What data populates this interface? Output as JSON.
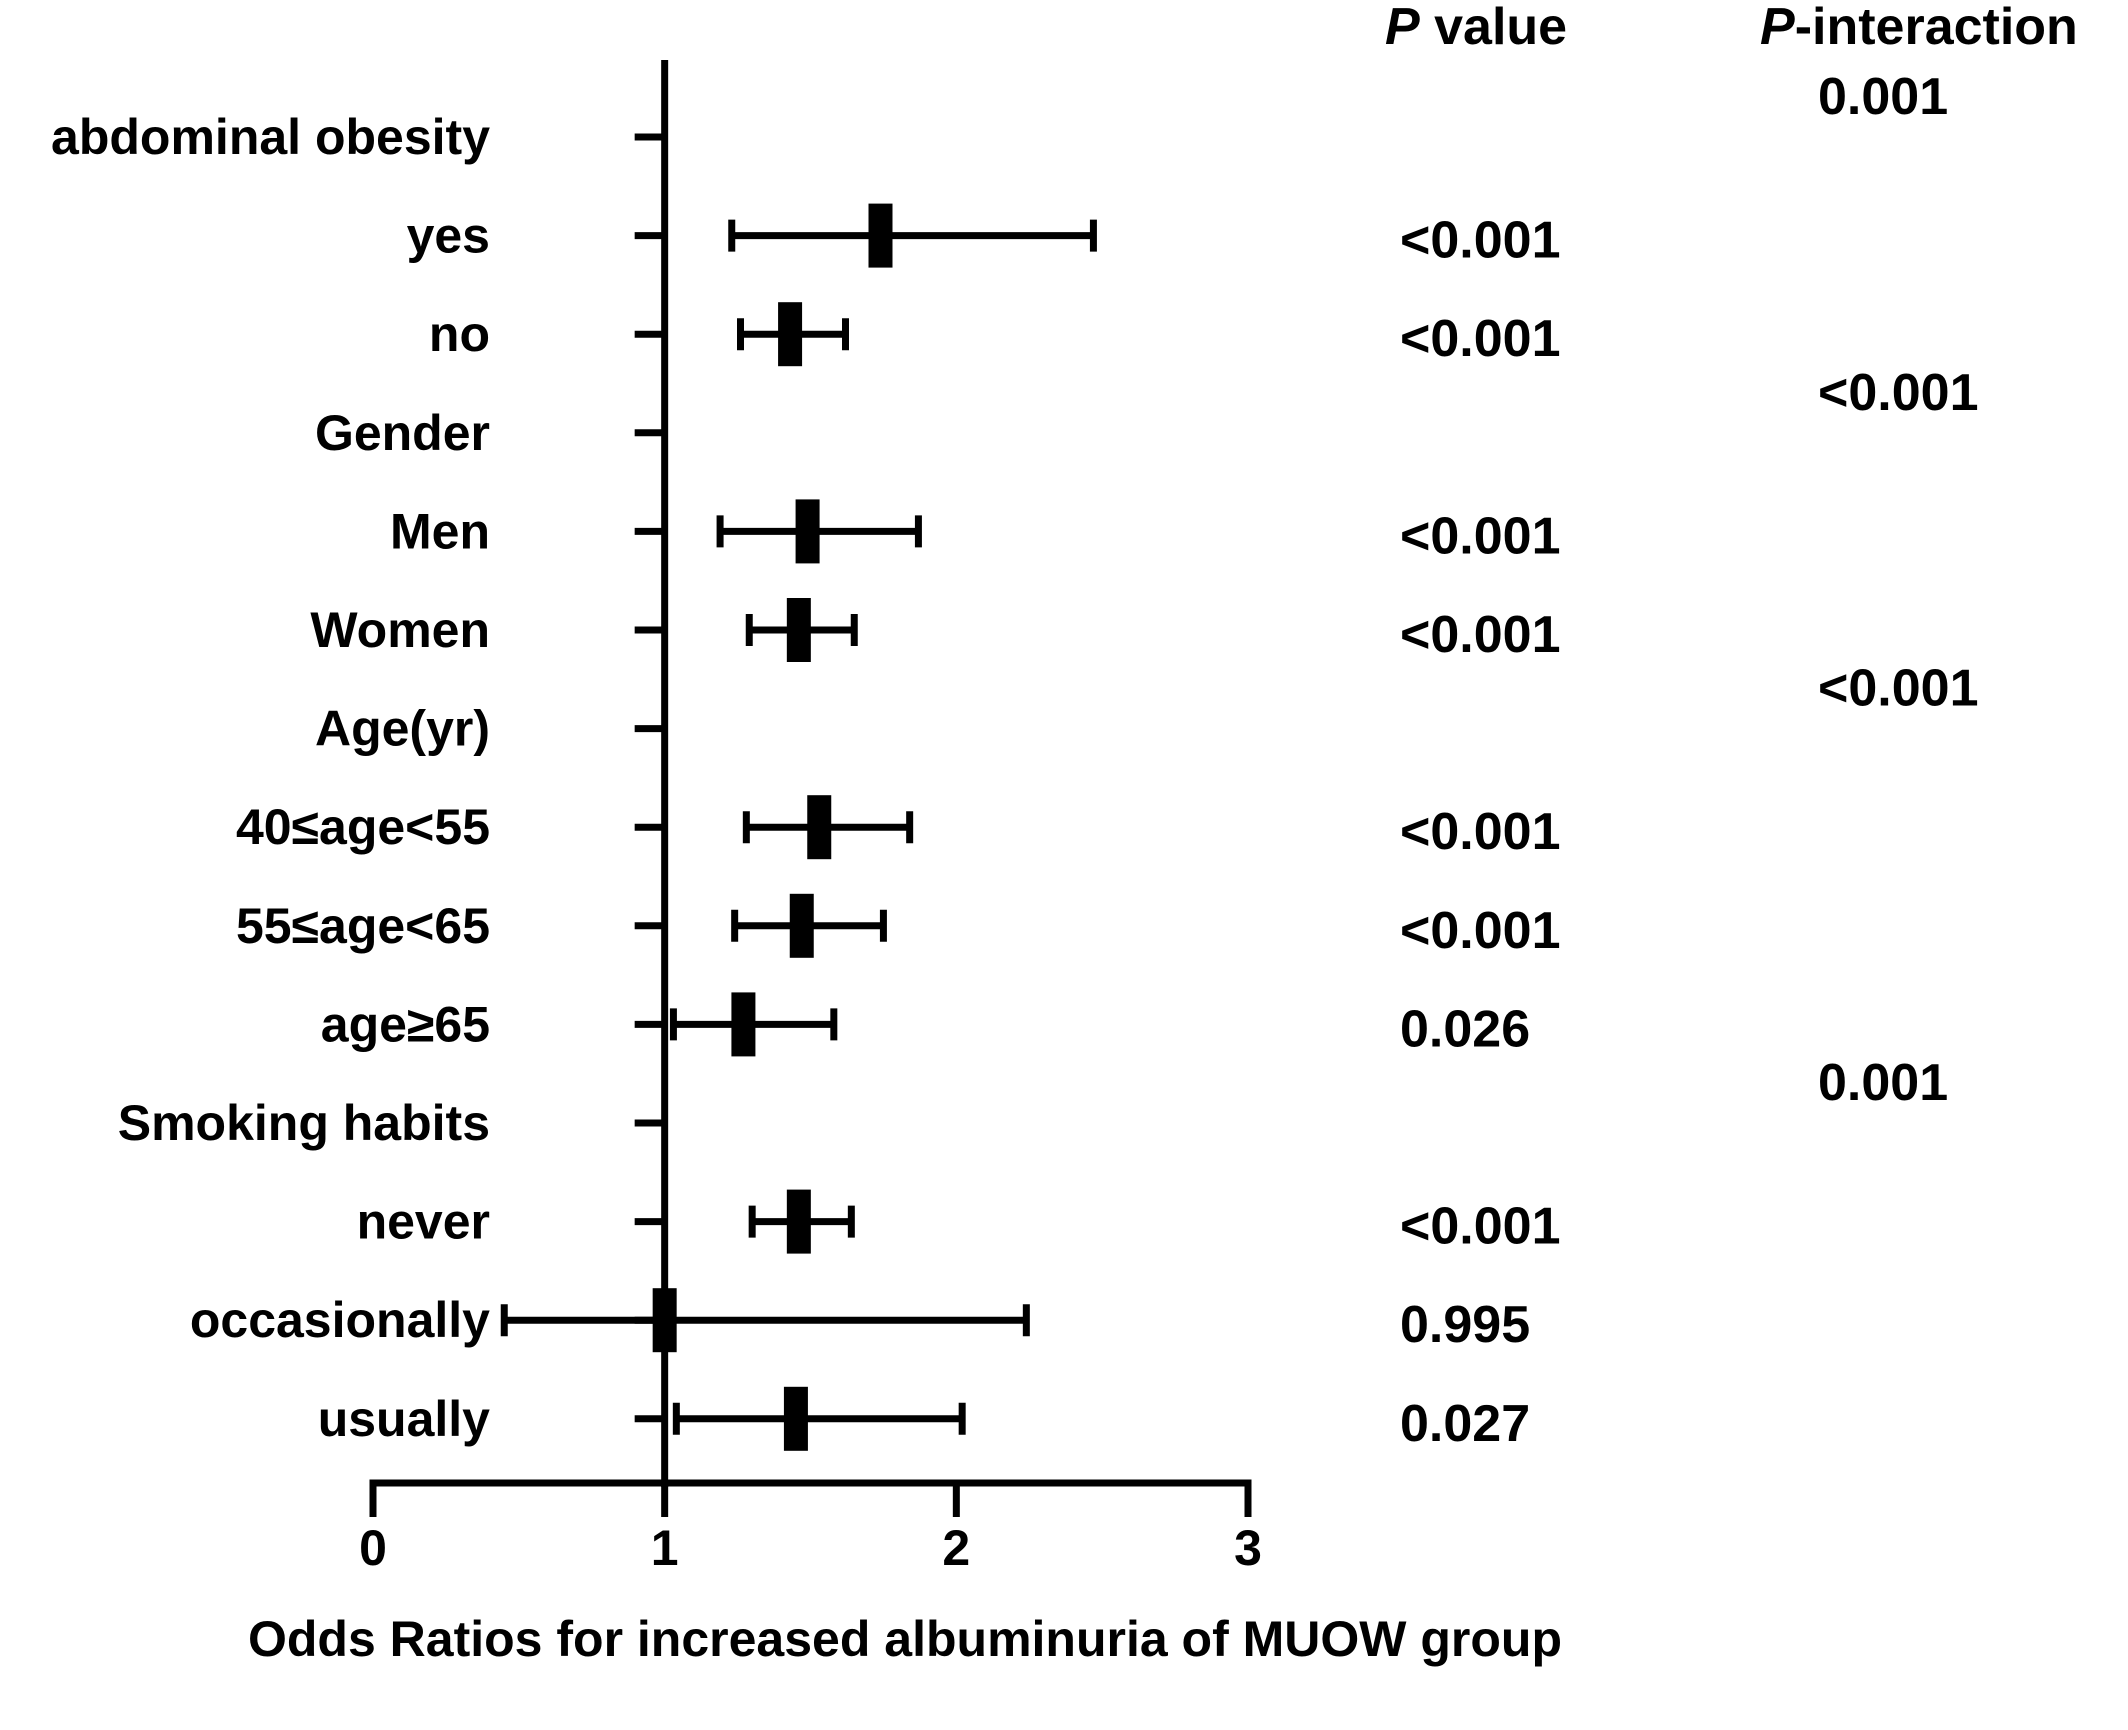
{
  "chart_data": {
    "type": "forest",
    "xlabel": "Odds Ratios for increased albuminuria of MUOW group",
    "xlim": [
      0,
      3
    ],
    "x_ticks": [
      "0",
      "1",
      "2",
      "3"
    ],
    "reference_line": 1,
    "column_headers": {
      "p_value": {
        "italic": "P",
        "rest": " value"
      },
      "p_interaction": {
        "italic": "P",
        "rest": "-interaction"
      }
    },
    "rows": [
      {
        "label": "abdominal obesity",
        "header": true,
        "p_value": "",
        "p_interaction": "0.001"
      },
      {
        "label": "yes",
        "or": 1.74,
        "lower": 1.23,
        "upper": 2.47,
        "p_value": "<0.001",
        "p_interaction": ""
      },
      {
        "label": "no",
        "or": 1.43,
        "lower": 1.26,
        "upper": 1.62,
        "p_value": "<0.001",
        "p_interaction": ""
      },
      {
        "label": "Gender",
        "header": true,
        "p_value": "",
        "p_interaction": "<0.001"
      },
      {
        "label": "Men",
        "or": 1.49,
        "lower": 1.19,
        "upper": 1.87,
        "p_value": "<0.001",
        "p_interaction": ""
      },
      {
        "label": "Women",
        "or": 1.46,
        "lower": 1.29,
        "upper": 1.65,
        "p_value": "<0.001",
        "p_interaction": ""
      },
      {
        "label": "Age(yr)",
        "header": true,
        "p_value": "",
        "p_interaction": "<0.001"
      },
      {
        "label": "40≤age<55",
        "or": 1.53,
        "lower": 1.28,
        "upper": 1.84,
        "p_value": "<0.001",
        "p_interaction": ""
      },
      {
        "label": "55≤age<65",
        "or": 1.47,
        "lower": 1.24,
        "upper": 1.75,
        "p_value": "<0.001",
        "p_interaction": ""
      },
      {
        "label": "age≥65",
        "or": 1.27,
        "lower": 1.03,
        "upper": 1.58,
        "p_value": "0.026",
        "p_interaction": ""
      },
      {
        "label": "Smoking habits",
        "header": true,
        "p_value": "",
        "p_interaction": "0.001"
      },
      {
        "label": "never",
        "or": 1.46,
        "lower": 1.3,
        "upper": 1.64,
        "p_value": "<0.001",
        "p_interaction": ""
      },
      {
        "label": "occasionally",
        "or": 1.0,
        "lower": 0.45,
        "upper": 2.24,
        "p_value": "0.995",
        "p_interaction": ""
      },
      {
        "label": "usually",
        "or": 1.45,
        "lower": 1.04,
        "upper": 2.02,
        "p_value": "0.027",
        "p_interaction": ""
      }
    ]
  }
}
